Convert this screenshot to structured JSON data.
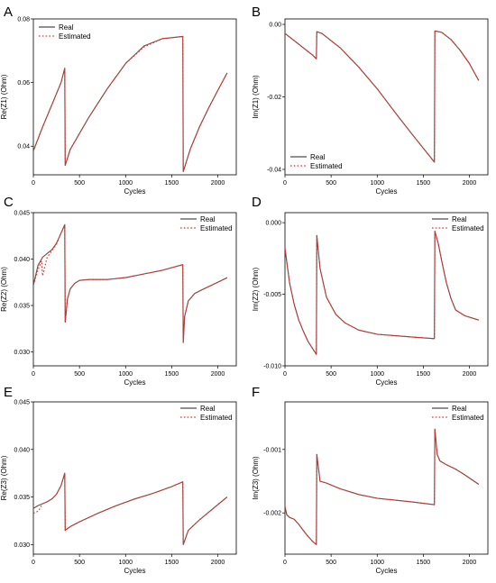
{
  "figure": {
    "legend": [
      "Real",
      "Estimated"
    ],
    "colors": {
      "real": "#4d4d4d",
      "estimated": "#e8312a",
      "axis": "#000000"
    }
  },
  "chart_data": [
    {
      "panel": "A",
      "type": "line",
      "xlabel": "Cycles",
      "ylabel": "Re(Z1) (Ohm)",
      "xlim": [
        0,
        2200
      ],
      "ylim": [
        0.031,
        0.08
      ],
      "xticks": [
        0,
        500,
        1000,
        1500,
        2000
      ],
      "yticks": [
        0.04,
        0.06,
        0.08
      ],
      "ytick_labels": [
        "0.04",
        "0.06",
        "0.08"
      ],
      "legend_position": "top-left",
      "series": [
        {
          "name": "Real",
          "style": "solid",
          "x": [
            0,
            100,
            200,
            300,
            340,
            345,
            400,
            600,
            800,
            1000,
            1200,
            1400,
            1620,
            1625,
            1700,
            1800,
            1900,
            2000,
            2100
          ],
          "y": [
            0.0385,
            0.046,
            0.053,
            0.06,
            0.0645,
            0.034,
            0.039,
            0.049,
            0.058,
            0.066,
            0.0715,
            0.0738,
            0.0745,
            0.032,
            0.039,
            0.046,
            0.052,
            0.0575,
            0.063
          ]
        },
        {
          "name": "Estimated",
          "style": "dotted",
          "x": [
            0,
            100,
            200,
            300,
            340,
            345,
            400,
            600,
            800,
            1000,
            1200,
            1400,
            1620,
            1625,
            1700,
            1800,
            1900,
            2000,
            2100
          ],
          "y": [
            0.0385,
            0.046,
            0.053,
            0.06,
            0.0645,
            0.034,
            0.039,
            0.049,
            0.058,
            0.066,
            0.0712,
            0.0738,
            0.0745,
            0.032,
            0.039,
            0.046,
            0.052,
            0.0575,
            0.063
          ]
        }
      ]
    },
    {
      "panel": "B",
      "type": "line",
      "xlabel": "Cycles",
      "ylabel": "Im(Z1) (Ohm)",
      "xlim": [
        0,
        2200
      ],
      "ylim": [
        -0.0415,
        0.0015
      ],
      "xticks": [
        0,
        500,
        1000,
        1500,
        2000
      ],
      "yticks": [
        -0.04,
        -0.02,
        0.0
      ],
      "ytick_labels": [
        "-0.04",
        "-0.02",
        "0.00"
      ],
      "legend_position": "bottom-left",
      "series": [
        {
          "name": "Real",
          "style": "solid",
          "x": [
            0,
            100,
            200,
            300,
            340,
            345,
            400,
            600,
            800,
            1000,
            1200,
            1400,
            1620,
            1625,
            1700,
            1800,
            1900,
            2000,
            2100
          ],
          "y": [
            -0.0025,
            -0.0045,
            -0.0065,
            -0.0085,
            -0.0095,
            -0.002,
            -0.0025,
            -0.0065,
            -0.0118,
            -0.0178,
            -0.0245,
            -0.031,
            -0.038,
            -0.0018,
            -0.0022,
            -0.0042,
            -0.0072,
            -0.0108,
            -0.0155
          ]
        },
        {
          "name": "Estimated",
          "style": "dotted",
          "x": [
            0,
            100,
            200,
            300,
            340,
            345,
            400,
            600,
            800,
            1000,
            1200,
            1400,
            1620,
            1625,
            1700,
            1800,
            1900,
            2000,
            2100
          ],
          "y": [
            -0.0025,
            -0.0045,
            -0.0065,
            -0.0085,
            -0.0095,
            -0.002,
            -0.0025,
            -0.0065,
            -0.0118,
            -0.0178,
            -0.0245,
            -0.031,
            -0.038,
            -0.0018,
            -0.0022,
            -0.0042,
            -0.0072,
            -0.0108,
            -0.0155
          ]
        }
      ]
    },
    {
      "panel": "C",
      "type": "line",
      "xlabel": "Cycles",
      "ylabel": "Re(Z2) (Ohm)",
      "xlim": [
        0,
        2200
      ],
      "ylim": [
        0.0285,
        0.045
      ],
      "xticks": [
        0,
        500,
        1000,
        1500,
        2000
      ],
      "yticks": [
        0.03,
        0.035,
        0.04,
        0.045
      ],
      "ytick_labels": [
        "0.030",
        "0.035",
        "0.040",
        "0.045"
      ],
      "legend_position": "top-right",
      "series": [
        {
          "name": "Real",
          "style": "solid",
          "x": [
            0,
            50,
            100,
            150,
            200,
            250,
            300,
            340,
            345,
            370,
            400,
            450,
            500,
            600,
            800,
            1000,
            1200,
            1400,
            1620,
            1625,
            1640,
            1680,
            1750,
            1850,
            2000,
            2100
          ],
          "y": [
            0.0372,
            0.0393,
            0.0402,
            0.0406,
            0.041,
            0.0417,
            0.0428,
            0.0437,
            0.0332,
            0.0357,
            0.0368,
            0.0374,
            0.0377,
            0.0378,
            0.0378,
            0.038,
            0.0384,
            0.0388,
            0.0394,
            0.031,
            0.0338,
            0.0355,
            0.0363,
            0.0368,
            0.0375,
            0.038
          ]
        },
        {
          "name": "Estimated",
          "style": "dotted",
          "x": [
            0,
            30,
            60,
            90,
            100,
            150,
            200,
            250,
            300,
            340,
            345,
            370,
            400,
            450,
            500,
            600,
            800,
            1000,
            1200,
            1400,
            1620,
            1625,
            1640,
            1680,
            1750,
            1850,
            2000,
            2100
          ],
          "y": [
            0.0372,
            0.0382,
            0.0391,
            0.0398,
            0.0382,
            0.0402,
            0.0409,
            0.0416,
            0.0428,
            0.0437,
            0.0332,
            0.0357,
            0.0368,
            0.0374,
            0.0377,
            0.0378,
            0.0378,
            0.038,
            0.0384,
            0.0388,
            0.0394,
            0.031,
            0.0338,
            0.0355,
            0.0363,
            0.0368,
            0.0375,
            0.038
          ]
        }
      ]
    },
    {
      "panel": "D",
      "type": "line",
      "xlabel": "Cycles",
      "ylabel": "Im(Z2) (Ohm)",
      "xlim": [
        0,
        2200
      ],
      "ylim": [
        -0.01,
        0.0007
      ],
      "xticks": [
        0,
        500,
        1000,
        1500,
        2000
      ],
      "yticks": [
        -0.01,
        -0.005,
        0.0
      ],
      "ytick_labels": [
        "-0.010",
        "-0.005",
        "0.000"
      ],
      "legend_position": "top-right",
      "series": [
        {
          "name": "Real",
          "style": "solid",
          "x": [
            0,
            50,
            100,
            150,
            200,
            250,
            300,
            340,
            345,
            380,
            450,
            550,
            650,
            800,
            1000,
            1200,
            1400,
            1620,
            1625,
            1660,
            1700,
            1750,
            1800,
            1850,
            1950,
            2100
          ],
          "y": [
            -0.0018,
            -0.0042,
            -0.0057,
            -0.0068,
            -0.0076,
            -0.0083,
            -0.0088,
            -0.0092,
            -0.0009,
            -0.0032,
            -0.0052,
            -0.0064,
            -0.007,
            -0.0075,
            -0.0078,
            -0.0079,
            -0.008,
            -0.0081,
            -0.0006,
            -0.0014,
            -0.0027,
            -0.0042,
            -0.0053,
            -0.0061,
            -0.0065,
            -0.0068
          ]
        },
        {
          "name": "Estimated",
          "style": "dotted",
          "x": [
            0,
            50,
            100,
            150,
            200,
            250,
            300,
            340,
            345,
            380,
            450,
            550,
            650,
            800,
            1000,
            1200,
            1400,
            1620,
            1625,
            1660,
            1700,
            1750,
            1800,
            1850,
            1950,
            2100
          ],
          "y": [
            -0.0018,
            -0.0042,
            -0.0057,
            -0.0068,
            -0.0076,
            -0.0083,
            -0.0088,
            -0.0092,
            -0.0009,
            -0.0032,
            -0.0052,
            -0.0064,
            -0.007,
            -0.0075,
            -0.0078,
            -0.0079,
            -0.008,
            -0.0081,
            -0.0006,
            -0.0014,
            -0.0027,
            -0.0042,
            -0.0053,
            -0.0061,
            -0.0065,
            -0.0068
          ]
        }
      ]
    },
    {
      "panel": "E",
      "type": "line",
      "xlabel": "Cycles",
      "ylabel": "Re(Z3) (Ohm)",
      "xlim": [
        0,
        2200
      ],
      "ylim": [
        0.029,
        0.045
      ],
      "xticks": [
        0,
        500,
        1000,
        1500,
        2000
      ],
      "yticks": [
        0.03,
        0.035,
        0.04,
        0.045
      ],
      "ytick_labels": [
        "0.030",
        "0.035",
        "0.040",
        "0.045"
      ],
      "legend_position": "top-right",
      "series": [
        {
          "name": "Real",
          "style": "solid",
          "x": [
            0,
            50,
            100,
            150,
            200,
            250,
            300,
            340,
            345,
            400,
            500,
            700,
            900,
            1100,
            1300,
            1500,
            1620,
            1625,
            1680,
            1800,
            1950,
            2100
          ],
          "y": [
            0.0338,
            0.0341,
            0.0343,
            0.0345,
            0.0348,
            0.0353,
            0.0362,
            0.0375,
            0.0315,
            0.0319,
            0.0324,
            0.0333,
            0.0341,
            0.0348,
            0.0354,
            0.0361,
            0.0366,
            0.03,
            0.0315,
            0.0326,
            0.0338,
            0.035
          ]
        },
        {
          "name": "Estimated",
          "style": "dotted",
          "x": [
            0,
            30,
            60,
            100,
            150,
            200,
            250,
            300,
            340,
            345,
            400,
            500,
            700,
            900,
            1100,
            1300,
            1500,
            1620,
            1625,
            1680,
            1800,
            1950,
            2100
          ],
          "y": [
            0.0333,
            0.0334,
            0.0336,
            0.0343,
            0.0345,
            0.0348,
            0.0353,
            0.0362,
            0.0375,
            0.0315,
            0.0319,
            0.0324,
            0.0333,
            0.0341,
            0.0348,
            0.0354,
            0.0361,
            0.0366,
            0.03,
            0.0315,
            0.0326,
            0.0338,
            0.035
          ]
        }
      ]
    },
    {
      "panel": "F",
      "type": "line",
      "xlabel": "Cycles",
      "ylabel": "Im(Z3) (Ohm)",
      "xlim": [
        0,
        2200
      ],
      "ylim": [
        -0.00265,
        -0.00025
      ],
      "xticks": [
        0,
        500,
        1000,
        1500,
        2000
      ],
      "yticks": [
        -0.002,
        -0.001
      ],
      "ytick_labels": [
        "-0.002",
        "-0.001"
      ],
      "legend_position": "top-right",
      "series": [
        {
          "name": "Real",
          "style": "solid",
          "x": [
            0,
            20,
            50,
            100,
            150,
            200,
            250,
            300,
            340,
            345,
            380,
            450,
            600,
            800,
            1000,
            1200,
            1400,
            1620,
            1625,
            1650,
            1680,
            1750,
            1850,
            1950,
            2100
          ],
          "y": [
            -0.0019,
            -0.00203,
            -0.00207,
            -0.0021,
            -0.00218,
            -0.00228,
            -0.00237,
            -0.00245,
            -0.0025,
            -0.00108,
            -0.0015,
            -0.00153,
            -0.00162,
            -0.00171,
            -0.00177,
            -0.0018,
            -0.00183,
            -0.00187,
            -0.00068,
            -0.00108,
            -0.00118,
            -0.00124,
            -0.00131,
            -0.0014,
            -0.00155
          ]
        },
        {
          "name": "Estimated",
          "style": "dotted",
          "x": [
            0,
            20,
            50,
            100,
            150,
            200,
            250,
            300,
            340,
            345,
            380,
            450,
            600,
            800,
            1000,
            1200,
            1400,
            1620,
            1625,
            1650,
            1680,
            1750,
            1850,
            1950,
            2100
          ],
          "y": [
            -0.0019,
            -0.00203,
            -0.00207,
            -0.0021,
            -0.00218,
            -0.00228,
            -0.00237,
            -0.00245,
            -0.0025,
            -0.00108,
            -0.0015,
            -0.00153,
            -0.00162,
            -0.00171,
            -0.00177,
            -0.0018,
            -0.00183,
            -0.00187,
            -0.00068,
            -0.00108,
            -0.00118,
            -0.00124,
            -0.00131,
            -0.0014,
            -0.00155
          ]
        }
      ]
    }
  ]
}
